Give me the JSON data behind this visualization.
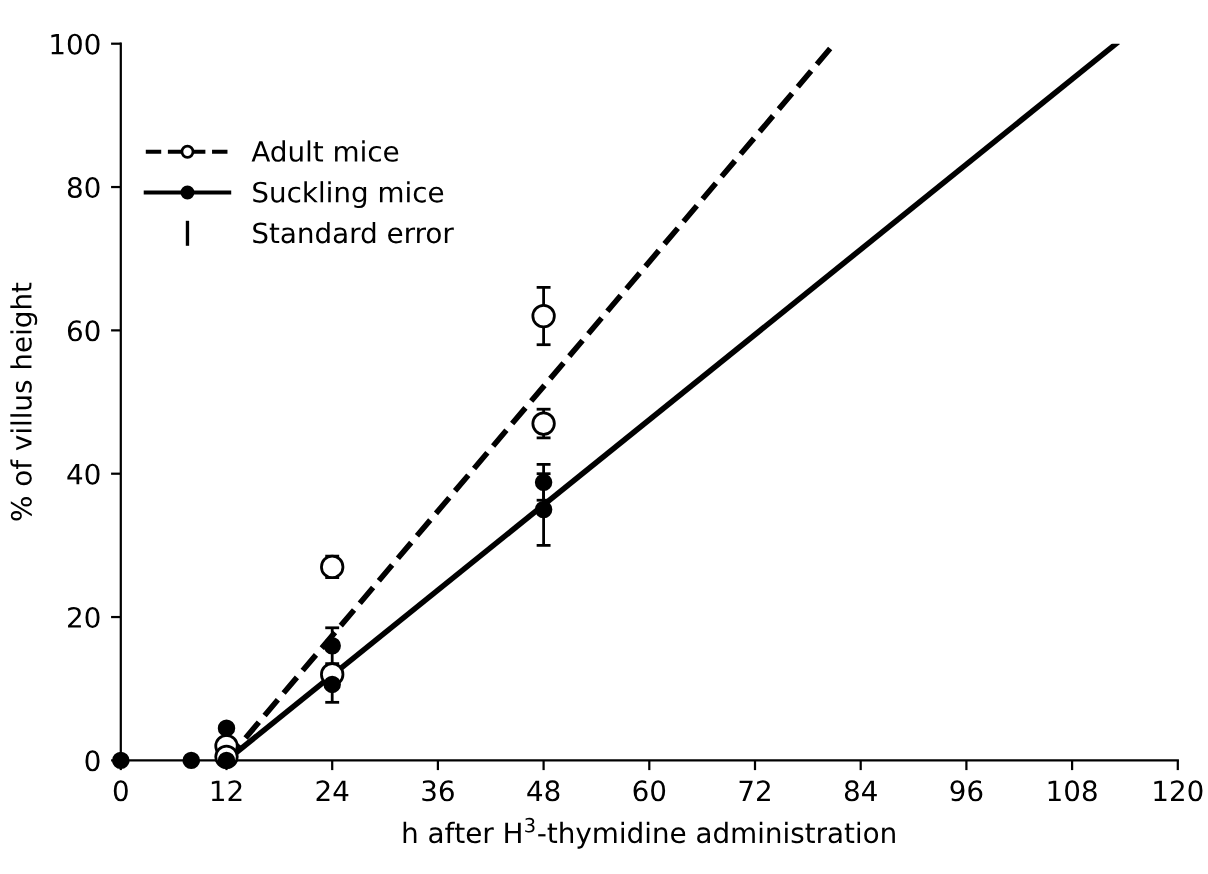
{
  "chart_data": {
    "type": "scatter",
    "xlabel": "h after H$^{3}$-thymidine administration",
    "ylabel": "% of villus height",
    "xlim": [
      0,
      120
    ],
    "xticks": [
      0,
      12,
      24,
      36,
      48,
      60,
      72,
      84,
      96,
      108,
      120
    ],
    "ylim": [
      0,
      100
    ],
    "yticks": [
      0,
      20,
      40,
      60,
      80,
      100
    ],
    "grid": false,
    "legend": "top left",
    "annotations": [
      "Standard error"
    ],
    "series": [
      {
        "name": "Adult mice",
        "type": "line",
        "line_style": "dashed",
        "color": "#000000",
        "x": [
          12,
          81
        ],
        "values": [
          0,
          100
        ]
      },
      {
        "name": "Suckling mice",
        "type": "line",
        "line_style": "solid",
        "color": "#000000",
        "x": [
          12,
          113
        ],
        "values": [
          0,
          100
        ]
      },
      {
        "marker": "circle",
        "color": "#ffffff",
        "x": [
          12,
          12,
          24,
          24,
          48,
          48
        ],
        "values": [
          2,
          0.5,
          27,
          12,
          62,
          47
        ],
        "errors": [
          null,
          null,
          1.5,
          null,
          4,
          2
        ]
      },
      {
        "marker": "circle",
        "color": "#000000",
        "x": [
          0,
          8,
          12,
          12,
          24,
          24,
          48,
          48
        ],
        "values": [
          0,
          0,
          0,
          4.5,
          16,
          10.6,
          38.8,
          35
        ],
        "errors": [
          null,
          null,
          null,
          null,
          2.5,
          2.5,
          2.5,
          5
        ]
      }
    ]
  }
}
